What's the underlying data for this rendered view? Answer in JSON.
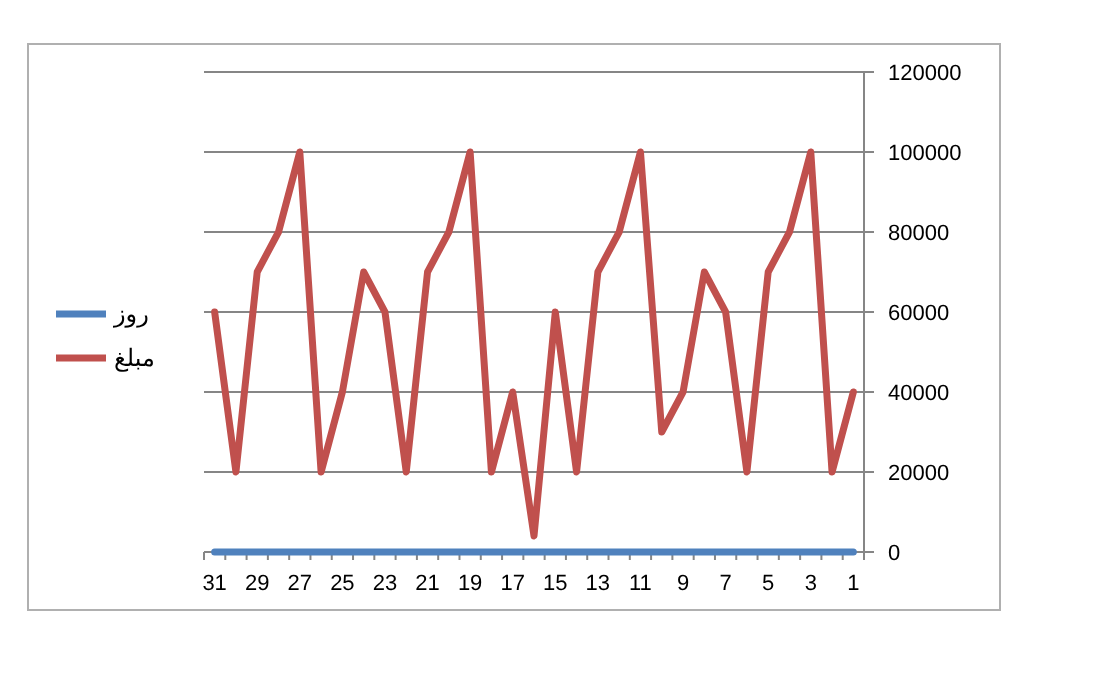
{
  "chart_data": {
    "type": "line",
    "categories": [
      "31",
      null,
      "29",
      null,
      "27",
      null,
      "25",
      null,
      "23",
      null,
      "21",
      null,
      "19",
      null,
      "17",
      null,
      "15",
      null,
      "13",
      null,
      "11",
      null,
      "9",
      null,
      "7",
      null,
      "5",
      null,
      "3",
      null,
      "1"
    ],
    "series": [
      {
        "name": "روز",
        "color": "#4f81bd",
        "values": [
          31,
          30,
          29,
          28,
          27,
          26,
          25,
          24,
          23,
          22,
          21,
          20,
          19,
          18,
          17,
          16,
          15,
          14,
          13,
          12,
          11,
          10,
          9,
          8,
          7,
          6,
          5,
          4,
          3,
          2,
          1
        ]
      },
      {
        "name": "مبلغ",
        "color": "#c0504d",
        "values": [
          60000,
          20000,
          70000,
          80000,
          100000,
          20000,
          40000,
          70000,
          60000,
          20000,
          70000,
          80000,
          100000,
          20000,
          40000,
          4000,
          60000,
          20000,
          70000,
          80000,
          100000,
          30000,
          40000,
          70000,
          60000,
          20000,
          70000,
          80000,
          100000,
          20000,
          40000
        ]
      }
    ],
    "ylim": [
      0,
      120000
    ],
    "yticks": [
      0,
      20000,
      40000,
      60000,
      80000,
      100000,
      120000
    ],
    "grid": "y",
    "legend": "left"
  }
}
